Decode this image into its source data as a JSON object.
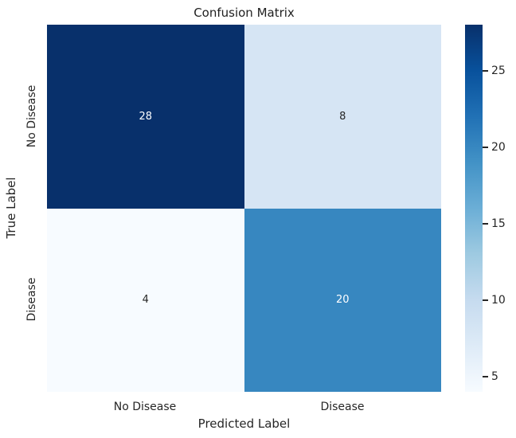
{
  "chart_data": {
    "type": "heatmap",
    "title": "Confusion Matrix",
    "xlabel": "Predicted Label",
    "ylabel": "True Label",
    "x_categories": [
      "No Disease",
      "Disease"
    ],
    "y_categories": [
      "No Disease",
      "Disease"
    ],
    "values": [
      [
        28,
        8
      ],
      [
        4,
        20
      ]
    ],
    "colormap": "Blues",
    "vmin": 4,
    "vmax": 28,
    "colorbar": {
      "position": "right",
      "ticks": [
        "25",
        "20",
        "15",
        "10",
        "5"
      ]
    },
    "grid": false,
    "legend": false
  },
  "colors": {
    "background": "#ffffff",
    "text": "#262626",
    "cell_r0c0": "#08306b",
    "cell_r0c1": "#d6e5f4",
    "cell_r1c0": "#f7fbff",
    "cell_r1c1": "#3787c0",
    "annot_on_dark": "#ffffff",
    "annot_on_light": "#262626",
    "colorbar_min": "#f7fbff",
    "colorbar_max": "#08306b"
  }
}
